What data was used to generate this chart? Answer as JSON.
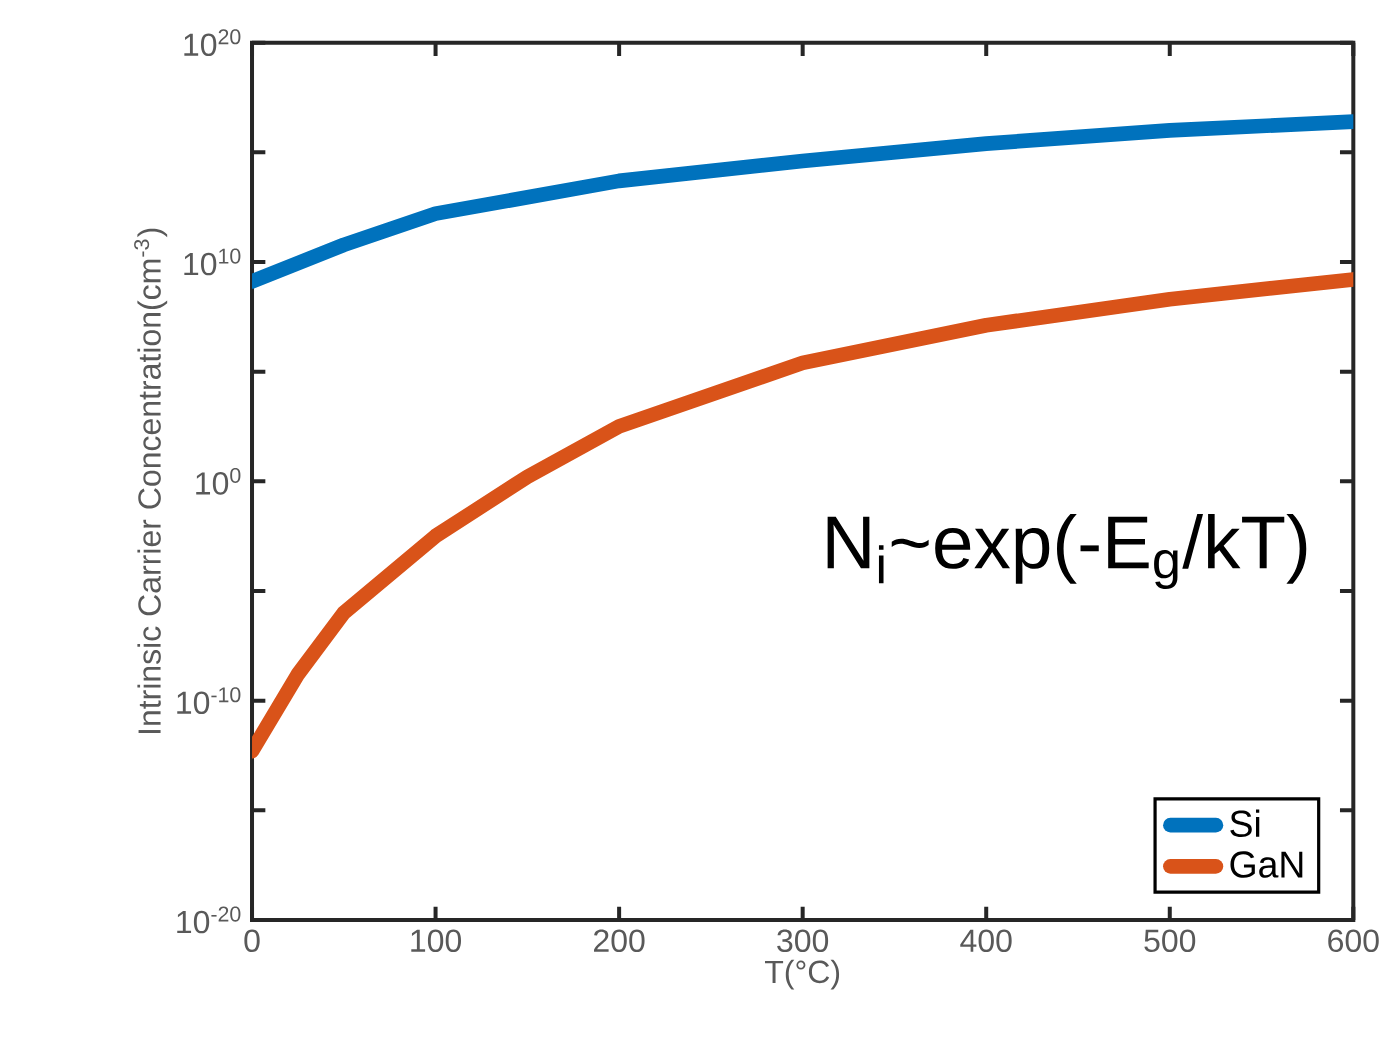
{
  "chart_data": {
    "type": "line",
    "xlabel": "T(°C)",
    "ylabel": "Intrinsic Carrier Concentration(cm$^{-3}$)",
    "log": "y",
    "legend": "bottom right",
    "grid": false,
    "marker": "none",
    "line_style": "solid",
    "xlim": [
      0,
      600
    ],
    "ylim": [
      1e-20,
      1e+20
    ],
    "xticks": [
      0,
      100,
      200,
      300,
      400,
      500,
      600
    ],
    "yticks": [
      {
        "value": 1e-20,
        "label": "10$^{-20}$"
      },
      {
        "value": 1e-15,
        "label": null
      },
      {
        "value": 1e-10,
        "label": "10$^{-10}$"
      },
      {
        "value": 1e-05,
        "label": null
      },
      {
        "value": 1,
        "label": "10$^{0}$"
      },
      {
        "value": 100000.0,
        "label": null
      },
      {
        "value": 10000000000.0,
        "label": "10$^{10}$"
      },
      {
        "value": 1000000000000000.0,
        "label": null
      },
      {
        "value": 1e+20,
        "label": "10$^{20}$"
      }
    ],
    "annotations": [
      "N$_{i}$~exp(-E$_{g}$/kT)"
    ],
    "series": [
      {
        "name": "Si",
        "color": "#0072bd",
        "x": [
          0,
          50,
          100,
          200,
          300,
          400,
          500,
          600
        ],
        "values": [
          1300000000.0,
          60000000000.0,
          1600000000000.0,
          50000000000000.0,
          400000000000000.0,
          2500000000000000.0,
          1e+16,
          2.5e+16
        ]
      },
      {
        "name": "GaN",
        "color": "#d95319",
        "x": [
          0,
          25,
          50,
          100,
          150,
          200,
          300,
          400,
          500,
          600
        ],
        "values": [
          5e-13,
          1.6e-09,
          1e-06,
          0.0032,
          1.6,
          320,
          250000.0,
          13000000.0,
          200000000.0,
          1600000000.0
        ]
      }
    ]
  }
}
